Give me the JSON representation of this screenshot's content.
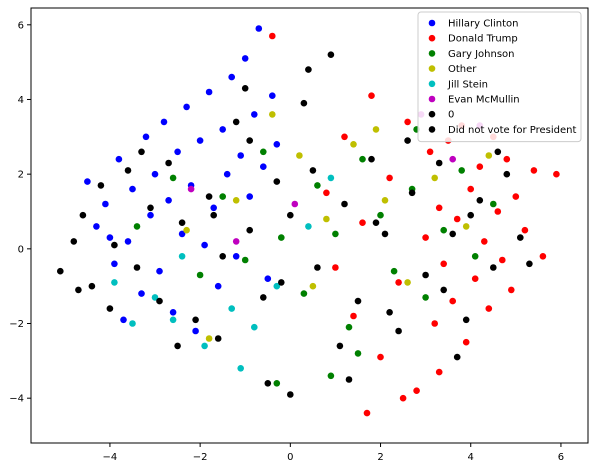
{
  "chart_data": {
    "type": "scatter",
    "title": "",
    "xlabel": "",
    "ylabel": "",
    "xlim": [
      -5.75,
      6.6
    ],
    "ylim": [
      -5.2,
      6.45
    ],
    "x_ticks": [
      -4,
      -2,
      0,
      2,
      4,
      6
    ],
    "y_ticks": [
      -4,
      -2,
      0,
      2,
      4,
      6
    ],
    "x_tick_labels": [
      "−4",
      "−2",
      "0",
      "2",
      "4",
      "6"
    ],
    "y_tick_labels": [
      "−4",
      "−2",
      "0",
      "2",
      "4",
      "6"
    ],
    "grid": false,
    "legend_position": "top-right",
    "series": [
      {
        "name": "Hillary Clinton",
        "color": "#0000ff",
        "points": [
          [
            -4.5,
            1.8
          ],
          [
            -4.3,
            0.6
          ],
          [
            -4.1,
            1.2
          ],
          [
            -3.9,
            -0.4
          ],
          [
            -3.8,
            2.4
          ],
          [
            -3.6,
            0.2
          ],
          [
            -3.5,
            1.6
          ],
          [
            -3.3,
            -1.2
          ],
          [
            -3.2,
            3.0
          ],
          [
            -3.1,
            0.9
          ],
          [
            -3.0,
            2.0
          ],
          [
            -2.9,
            -0.6
          ],
          [
            -2.8,
            3.4
          ],
          [
            -2.7,
            1.3
          ],
          [
            -2.6,
            -1.7
          ],
          [
            -2.5,
            2.6
          ],
          [
            -2.4,
            0.4
          ],
          [
            -2.3,
            3.8
          ],
          [
            -2.2,
            1.7
          ],
          [
            -2.1,
            -2.2
          ],
          [
            -2.0,
            2.9
          ],
          [
            -1.9,
            0.1
          ],
          [
            -1.8,
            4.2
          ],
          [
            -1.7,
            1.1
          ],
          [
            -1.6,
            -1.0
          ],
          [
            -1.5,
            3.2
          ],
          [
            -1.4,
            2.0
          ],
          [
            -1.3,
            4.6
          ],
          [
            -1.2,
            -0.2
          ],
          [
            -1.1,
            2.5
          ],
          [
            -1.0,
            5.1
          ],
          [
            -0.9,
            1.4
          ],
          [
            -0.8,
            3.6
          ],
          [
            -0.7,
            5.9
          ],
          [
            -0.6,
            2.2
          ],
          [
            -0.5,
            -0.8
          ],
          [
            -0.4,
            4.1
          ],
          [
            -0.3,
            2.8
          ],
          [
            -3.7,
            -1.9
          ],
          [
            -4.0,
            0.3
          ]
        ]
      },
      {
        "name": "Donald Trump",
        "color": "#ff0000",
        "points": [
          [
            -0.4,
            5.7
          ],
          [
            0.8,
            1.5
          ],
          [
            1.0,
            -0.5
          ],
          [
            1.2,
            3.0
          ],
          [
            1.4,
            -1.8
          ],
          [
            1.6,
            0.7
          ],
          [
            1.8,
            4.1
          ],
          [
            2.0,
            -2.9
          ],
          [
            2.2,
            1.9
          ],
          [
            2.4,
            -0.9
          ],
          [
            2.6,
            3.4
          ],
          [
            2.8,
            -3.8
          ],
          [
            3.0,
            0.3
          ],
          [
            3.1,
            2.6
          ],
          [
            3.2,
            -2.0
          ],
          [
            3.3,
            1.1
          ],
          [
            3.4,
            -0.4
          ],
          [
            3.5,
            2.9
          ],
          [
            3.6,
            -1.4
          ],
          [
            3.7,
            0.8
          ],
          [
            3.8,
            3.3
          ],
          [
            3.9,
            -2.5
          ],
          [
            4.0,
            1.6
          ],
          [
            4.1,
            -0.8
          ],
          [
            4.2,
            2.2
          ],
          [
            4.3,
            0.2
          ],
          [
            4.4,
            -1.6
          ],
          [
            4.5,
            3.0
          ],
          [
            4.6,
            1.0
          ],
          [
            4.7,
            -0.3
          ],
          [
            4.8,
            2.4
          ],
          [
            4.9,
            -1.1
          ],
          [
            5.0,
            1.4
          ],
          [
            5.2,
            0.5
          ],
          [
            5.4,
            2.1
          ],
          [
            5.6,
            -0.2
          ],
          [
            5.9,
            2.0
          ],
          [
            2.5,
            -4.0
          ],
          [
            1.7,
            -4.4
          ],
          [
            3.3,
            -3.3
          ]
        ]
      },
      {
        "name": "Gary Johnson",
        "color": "#008000",
        "points": [
          [
            -3.4,
            0.6
          ],
          [
            -2.6,
            1.9
          ],
          [
            -2.0,
            -0.7
          ],
          [
            -1.5,
            1.4
          ],
          [
            -1.0,
            -0.3
          ],
          [
            -0.6,
            2.6
          ],
          [
            -0.2,
            0.3
          ],
          [
            0.3,
            -1.2
          ],
          [
            0.6,
            1.7
          ],
          [
            1.0,
            0.4
          ],
          [
            1.3,
            -2.1
          ],
          [
            1.6,
            2.4
          ],
          [
            2.0,
            0.9
          ],
          [
            2.3,
            -0.6
          ],
          [
            2.7,
            1.6
          ],
          [
            3.0,
            -1.3
          ],
          [
            3.4,
            0.5
          ],
          [
            3.8,
            2.1
          ],
          [
            4.1,
            -0.2
          ],
          [
            4.5,
            1.2
          ],
          [
            0.9,
            -3.4
          ],
          [
            1.5,
            -2.8
          ],
          [
            -0.3,
            -3.6
          ],
          [
            2.8,
            3.2
          ]
        ]
      },
      {
        "name": "Other",
        "color": "#bfbf00",
        "points": [
          [
            -2.3,
            0.5
          ],
          [
            -1.2,
            1.3
          ],
          [
            -0.4,
            3.6
          ],
          [
            0.2,
            2.5
          ],
          [
            0.8,
            0.8
          ],
          [
            1.4,
            2.8
          ],
          [
            2.1,
            1.3
          ],
          [
            2.6,
            -0.9
          ],
          [
            3.2,
            1.9
          ],
          [
            3.9,
            0.6
          ],
          [
            4.4,
            2.5
          ],
          [
            0.5,
            -1.0
          ],
          [
            -1.8,
            -2.4
          ],
          [
            1.9,
            3.2
          ]
        ]
      },
      {
        "name": "Jill Stein",
        "color": "#00bfbf",
        "points": [
          [
            -3.9,
            -0.9
          ],
          [
            -3.0,
            -1.3
          ],
          [
            -2.4,
            -0.2
          ],
          [
            -1.9,
            -2.6
          ],
          [
            -1.3,
            -1.6
          ],
          [
            -0.8,
            -2.1
          ],
          [
            -0.3,
            -1.0
          ],
          [
            0.4,
            0.6
          ],
          [
            -1.1,
            -3.2
          ],
          [
            -2.6,
            -1.9
          ],
          [
            0.9,
            1.9
          ],
          [
            -3.5,
            -2.0
          ]
        ]
      },
      {
        "name": "Evan McMullin",
        "color": "#bf00bf",
        "points": [
          [
            2.9,
            3.6
          ],
          [
            -1.2,
            0.2
          ],
          [
            0.1,
            1.2
          ],
          [
            3.6,
            2.4
          ],
          [
            -2.2,
            1.6
          ],
          [
            4.2,
            3.3
          ]
        ]
      },
      {
        "name": "0",
        "color": "#000000",
        "points": [
          [
            -5.1,
            -0.6
          ],
          [
            -4.6,
            0.9
          ],
          [
            -4.4,
            -1.0
          ],
          [
            -4.2,
            1.7
          ],
          [
            -3.9,
            0.1
          ],
          [
            -3.6,
            2.1
          ],
          [
            -3.4,
            -0.5
          ],
          [
            -3.1,
            1.1
          ],
          [
            -2.9,
            -1.4
          ],
          [
            -2.7,
            2.3
          ],
          [
            -2.4,
            0.7
          ],
          [
            -2.1,
            -1.9
          ],
          [
            -1.8,
            1.4
          ],
          [
            -1.5,
            -0.2
          ],
          [
            -1.2,
            3.4
          ],
          [
            -0.9,
            0.5
          ],
          [
            -0.6,
            -1.3
          ],
          [
            -0.3,
            1.8
          ],
          [
            0.0,
            0.9
          ],
          [
            0.3,
            3.9
          ],
          [
            0.6,
            -0.5
          ],
          [
            0.9,
            5.2
          ],
          [
            1.2,
            1.2
          ],
          [
            1.5,
            -1.4
          ],
          [
            1.8,
            2.4
          ],
          [
            2.1,
            0.4
          ],
          [
            2.4,
            -2.2
          ],
          [
            2.7,
            1.5
          ],
          [
            3.0,
            -0.7
          ],
          [
            3.3,
            2.3
          ],
          [
            3.6,
            0.4
          ],
          [
            3.9,
            -1.9
          ],
          [
            4.2,
            1.3
          ],
          [
            4.5,
            -0.5
          ],
          [
            4.8,
            2.0
          ],
          [
            5.1,
            0.3
          ],
          [
            0.0,
            -3.9
          ],
          [
            -0.5,
            -3.6
          ],
          [
            -1.6,
            -2.4
          ],
          [
            -4.7,
            -1.1
          ]
        ]
      },
      {
        "name": "Did not vote for President",
        "color": "#000000",
        "points": [
          [
            -4.8,
            0.2
          ],
          [
            -4.0,
            -1.6
          ],
          [
            -3.3,
            2.6
          ],
          [
            -2.5,
            -2.6
          ],
          [
            -1.7,
            0.9
          ],
          [
            -0.9,
            2.9
          ],
          [
            -0.2,
            -0.9
          ],
          [
            0.5,
            2.1
          ],
          [
            1.1,
            -2.6
          ],
          [
            1.9,
            0.7
          ],
          [
            2.6,
            2.9
          ],
          [
            3.4,
            -1.1
          ],
          [
            4.0,
            0.9
          ],
          [
            4.6,
            2.6
          ],
          [
            5.3,
            -0.4
          ],
          [
            3.7,
            -2.9
          ],
          [
            1.3,
            -3.5
          ],
          [
            -1.0,
            4.3
          ],
          [
            0.4,
            4.8
          ],
          [
            2.2,
            -1.7
          ]
        ]
      }
    ]
  }
}
